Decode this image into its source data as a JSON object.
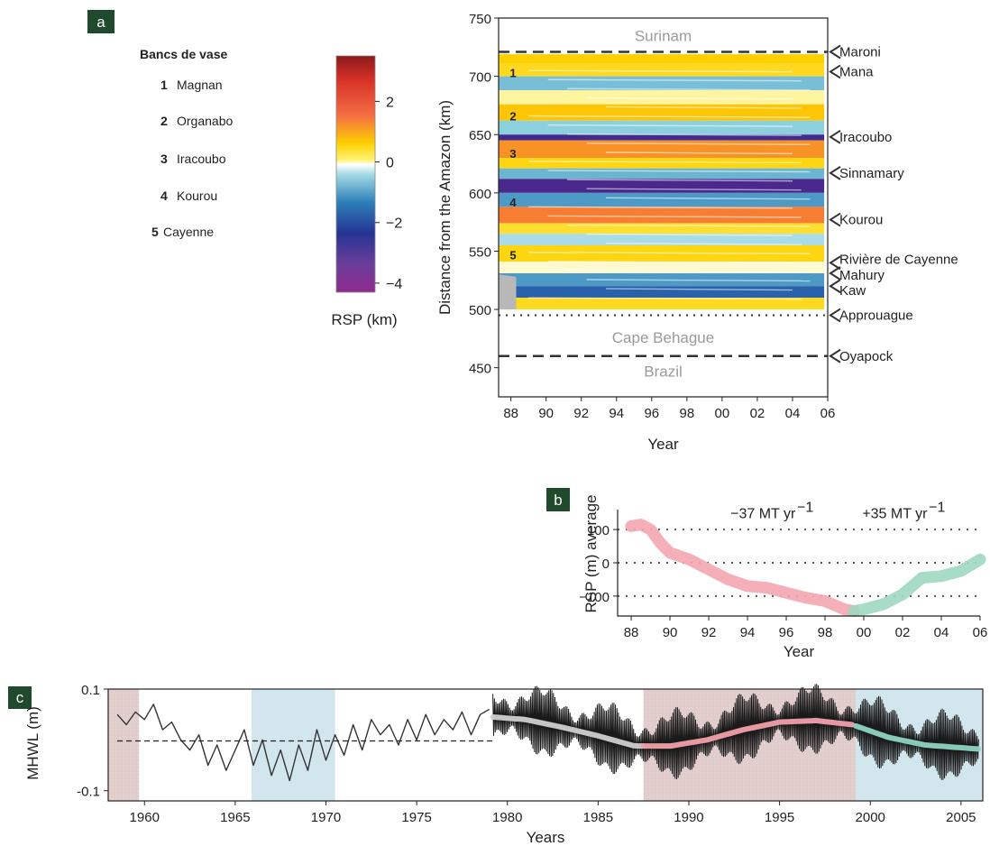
{
  "panels": {
    "a": "a",
    "b": "b",
    "c": "c"
  },
  "legend": {
    "title": "Bancs de vase",
    "items": [
      {
        "num": "1",
        "name": "Magnan"
      },
      {
        "num": "2",
        "name": "Organabo"
      },
      {
        "num": "3",
        "name": "Iracoubo"
      },
      {
        "num": "4",
        "name": "Kourou"
      },
      {
        "num": "5",
        "name": "Cayenne"
      }
    ]
  },
  "colorbar": {
    "label": "RSP (km)",
    "ticks": [
      "2",
      "0",
      "−2",
      "−4"
    ],
    "tick_values": [
      2,
      0,
      -2,
      -4
    ],
    "range": [
      -4.3,
      3.5
    ]
  },
  "colors": {
    "panel_label_bg": "#1f4a2c",
    "gray_region_text": "#9a9a9a",
    "erosion_pink": "#f4a6b0",
    "accretion_green": "#9ed8c0",
    "shade_pink": "#c9a3a3",
    "shade_blue": "#a9d0dc",
    "ink": "#222222"
  },
  "chart_data": [
    {
      "type": "heatmap",
      "panel": "a",
      "xlabel": "Year",
      "ylabel": "Distance from the Amazon (km)",
      "xticks": [
        "88",
        "90",
        "92",
        "94",
        "96",
        "98",
        "00",
        "02",
        "04",
        "06"
      ],
      "x_tick_values": [
        1988,
        1990,
        1992,
        1994,
        1996,
        1998,
        2000,
        2002,
        2004,
        2006
      ],
      "yticks": [
        "750",
        "700",
        "650",
        "600",
        "550",
        "500",
        "450"
      ],
      "y_tick_values": [
        750,
        700,
        650,
        600,
        550,
        500,
        450
      ],
      "xlim": [
        1987.3,
        2006
      ],
      "ylim": [
        425,
        750
      ],
      "regions": [
        {
          "name": "Surinam",
          "y": 735
        },
        {
          "name": "Cape Behague",
          "y": 476
        },
        {
          "name": "Brazil",
          "y": 447
        }
      ],
      "boundaries": [
        {
          "y": 721,
          "style": "dashed"
        },
        {
          "y": 495,
          "style": "dotted"
        },
        {
          "y": 460,
          "style": "dashed"
        }
      ],
      "rivers": [
        {
          "name": "Maroni",
          "y": 721
        },
        {
          "name": "Mana",
          "y": 704
        },
        {
          "name": "Iracoubo",
          "y": 648
        },
        {
          "name": "Sinnamary",
          "y": 617
        },
        {
          "name": "Kourou",
          "y": 577
        },
        {
          "name": "Rivière de Cayenne",
          "y": 540
        },
        {
          "name": "Mahury",
          "y": 531
        },
        {
          "name": "Kaw",
          "y": 520
        },
        {
          "name": "Approuague",
          "y": 495
        },
        {
          "name": "Oyapock",
          "y": 460
        }
      ],
      "bank_labels": [
        {
          "num": "1",
          "y": 703
        },
        {
          "num": "2",
          "y": 666
        },
        {
          "num": "3",
          "y": 634
        },
        {
          "num": "4",
          "y": 592
        },
        {
          "num": "5",
          "y": 547
        }
      ],
      "bands": [
        {
          "y0": 711,
          "y1": 719,
          "value": 1.0
        },
        {
          "y0": 700,
          "y1": 711,
          "value": 0.8
        },
        {
          "y0": 688,
          "y1": 700,
          "value": -0.6
        },
        {
          "y0": 676,
          "y1": 688,
          "value": 0.2
        },
        {
          "y0": 662,
          "y1": 676,
          "value": 1.1
        },
        {
          "y0": 650,
          "y1": 662,
          "value": -0.4
        },
        {
          "y0": 645,
          "y1": 650,
          "value": -3.0
        },
        {
          "y0": 630,
          "y1": 645,
          "value": 1.6
        },
        {
          "y0": 621,
          "y1": 630,
          "value": 0.9
        },
        {
          "y0": 612,
          "y1": 621,
          "value": -0.7
        },
        {
          "y0": 600,
          "y1": 612,
          "value": -3.2
        },
        {
          "y0": 588,
          "y1": 600,
          "value": -1.0
        },
        {
          "y0": 574,
          "y1": 588,
          "value": 1.8
        },
        {
          "y0": 565,
          "y1": 574,
          "value": 0.7
        },
        {
          "y0": 555,
          "y1": 565,
          "value": -0.3
        },
        {
          "y0": 541,
          "y1": 555,
          "value": 0.9
        },
        {
          "y0": 531,
          "y1": 541,
          "value": 0.1
        },
        {
          "y0": 520,
          "y1": 531,
          "value": -1.0
        },
        {
          "y0": 510,
          "y1": 520,
          "value": -1.7
        },
        {
          "y0": 500,
          "y1": 510,
          "value": 0.8
        }
      ]
    },
    {
      "type": "line",
      "panel": "b",
      "xlabel": "Year",
      "ylabel": "RSP (m) average",
      "xticks": [
        "88",
        "90",
        "92",
        "94",
        "96",
        "98",
        "00",
        "02",
        "04",
        "06"
      ],
      "x_tick_values": [
        1988,
        1990,
        1992,
        1994,
        1996,
        1998,
        2000,
        2002,
        2004,
        2006
      ],
      "yticks": [
        "100",
        "0",
        "−100"
      ],
      "y_tick_values": [
        100,
        0,
        -100
      ],
      "xlim": [
        1987.3,
        2006
      ],
      "ylim": [
        -160,
        160
      ],
      "annotations": [
        {
          "text": "−37 MT yr",
          "sup": "−1",
          "x": 1994.8,
          "y": 150
        },
        {
          "text": "+35 MT yr",
          "sup": "−1",
          "x": 2001.6,
          "y": 150
        }
      ],
      "series": [
        {
          "color": "#f4a6b0",
          "x": [
            1988.0,
            1988.5,
            1989.0,
            1989.5,
            1990.0,
            1991.0,
            1992.0,
            1993.0,
            1994.0,
            1995.0,
            1996.0,
            1997.0,
            1998.0,
            1999.0,
            1999.5
          ],
          "y": [
            110,
            115,
            100,
            60,
            30,
            10,
            -20,
            -50,
            -70,
            -75,
            -90,
            -105,
            -115,
            -140,
            -145
          ]
        },
        {
          "color": "#9ed8c0",
          "x": [
            1999.5,
            2000.0,
            2001.0,
            2002.0,
            2002.5,
            2003.0,
            2004.0,
            2005.0,
            2006.0
          ],
          "y": [
            -145,
            -140,
            -125,
            -95,
            -70,
            -45,
            -40,
            -25,
            10
          ]
        }
      ]
    },
    {
      "type": "line",
      "panel": "c",
      "xlabel": "Years",
      "ylabel": "MHWL (m)",
      "xticks": [
        "1960",
        "1965",
        "1970",
        "1975",
        "1980",
        "1985",
        "1990",
        "1995",
        "2000",
        "2005"
      ],
      "x_tick_values": [
        1960,
        1965,
        1970,
        1975,
        1980,
        1985,
        1990,
        1995,
        2000,
        2005
      ],
      "yticks": [
        "0.1",
        "-0.1"
      ],
      "y_tick_values": [
        0.1,
        -0.1
      ],
      "xlim": [
        1958,
        2006.2
      ],
      "ylim": [
        -0.12,
        0.1
      ],
      "shaded_periods": [
        {
          "x0": 1958,
          "x1": 1959.7,
          "color": "#c9a3a3"
        },
        {
          "x0": 1965.9,
          "x1": 1970.5,
          "color": "#a9d0dc"
        },
        {
          "x0": 1987.5,
          "x1": 1999.2,
          "color": "#c9a3a3"
        },
        {
          "x0": 1999.2,
          "x1": 2006.2,
          "color": "#a9d0dc"
        }
      ],
      "mean_line": {
        "x": [
          1958.5,
          1979.2
        ],
        "y": [
          -0.002,
          -0.002
        ]
      },
      "trend": {
        "x": [
          1979.2,
          1981,
          1983,
          1985,
          1987,
          1989,
          1991,
          1993,
          1995,
          1997,
          1999,
          2001,
          2003,
          2006
        ],
        "y": [
          0.045,
          0.04,
          0.025,
          0.008,
          -0.012,
          -0.012,
          0.0,
          0.02,
          0.035,
          0.038,
          0.03,
          0.005,
          -0.01,
          -0.018
        ]
      },
      "monthly_series": {
        "x": [
          1958.5,
          1959,
          1959.5,
          1960,
          1960.5,
          1961,
          1961.5,
          1962,
          1962.5,
          1963,
          1963.5,
          1964,
          1964.5,
          1965,
          1965.5,
          1966,
          1966.5,
          1967,
          1967.5,
          1968,
          1968.5,
          1969,
          1969.5,
          1970,
          1970.5,
          1971,
          1971.5,
          1972,
          1972.5,
          1973,
          1973.5,
          1974,
          1974.5,
          1975,
          1975.5,
          1976,
          1976.5,
          1977,
          1977.5,
          1978,
          1978.5,
          1979
        ],
        "y": [
          0.05,
          0.03,
          0.055,
          0.04,
          0.07,
          0.02,
          0.035,
          0.0,
          -0.02,
          0.01,
          -0.05,
          -0.01,
          -0.06,
          -0.02,
          0.02,
          -0.05,
          0.0,
          -0.07,
          -0.02,
          -0.08,
          -0.01,
          -0.06,
          0.02,
          -0.04,
          0.01,
          -0.03,
          0.03,
          -0.02,
          0.04,
          0.01,
          0.03,
          -0.01,
          0.04,
          0.0,
          0.05,
          0.01,
          0.04,
          0.02,
          0.055,
          0.01,
          0.05,
          0.06
        ]
      }
    }
  ]
}
